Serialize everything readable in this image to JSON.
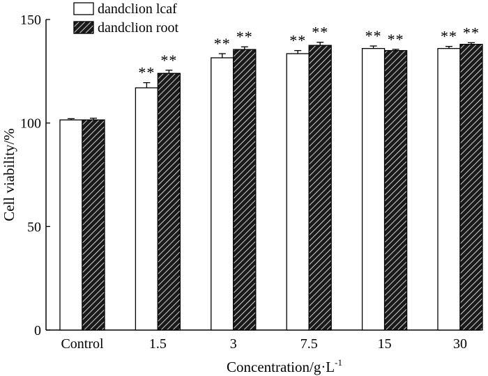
{
  "chart_data": {
    "type": "bar",
    "title": "",
    "xlabel": "Concentration/g·L",
    "xlabel_superscript": "-1",
    "ylabel": "Cell viability/%",
    "ylim": [
      0,
      150
    ],
    "yticks": [
      0,
      50,
      100,
      150
    ],
    "grid": false,
    "legend_position": "top-left",
    "categories": [
      "Control",
      "1.5",
      "3",
      "7.5",
      "15",
      "30"
    ],
    "series": [
      {
        "name": "dandclion lcaf",
        "pattern": "open",
        "values": [
          101.5,
          117,
          131.5,
          133.5,
          136,
          136
        ],
        "errors": [
          0.6,
          2.5,
          2.0,
          1.5,
          1.2,
          1.0
        ],
        "significance": [
          "",
          "**",
          "**",
          "**",
          "**",
          "**"
        ]
      },
      {
        "name": "dandclion root",
        "pattern": "hatched",
        "values": [
          101.5,
          124,
          135.5,
          137.5,
          135,
          138
        ],
        "errors": [
          0.8,
          1.5,
          1.3,
          1.5,
          0.6,
          0.8
        ],
        "significance": [
          "",
          "**",
          "**",
          "**",
          "**",
          "**"
        ]
      }
    ]
  }
}
